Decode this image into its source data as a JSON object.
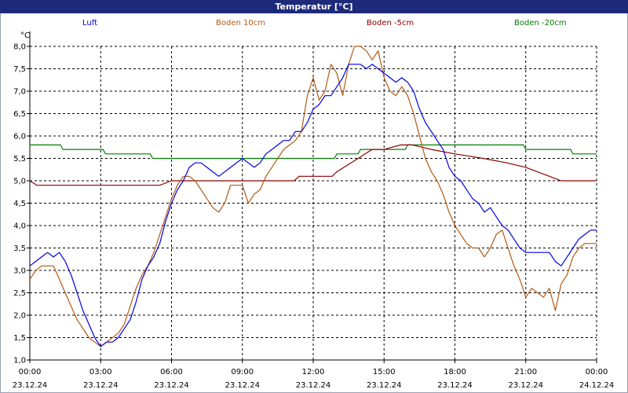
{
  "window": {
    "title": "Temperatur [°C]"
  },
  "colors": {
    "titlebar": "#1d2a7a",
    "grid": "#000000"
  },
  "chart_data": {
    "type": "line",
    "title": "Temperatur [°C]",
    "ylabel": "°C",
    "ylim": [
      1.0,
      8.0
    ],
    "yticks": [
      "1,0",
      "1,5",
      "2,0",
      "2,5",
      "3,0",
      "3,5",
      "4,0",
      "4,5",
      "5,0",
      "5,5",
      "6,0",
      "6,5",
      "7,0",
      "7,5",
      "8,0"
    ],
    "xlim": [
      0,
      24
    ],
    "xticks": [
      {
        "time": "00:00",
        "date": "23.12.24"
      },
      {
        "time": "03:00",
        "date": "23.12.24"
      },
      {
        "time": "06:00",
        "date": "23.12.24"
      },
      {
        "time": "09:00",
        "date": "23.12.24"
      },
      {
        "time": "12:00",
        "date": "23.12.24"
      },
      {
        "time": "15:00",
        "date": "23.12.24"
      },
      {
        "time": "18:00",
        "date": "23.12.24"
      },
      {
        "time": "21:00",
        "date": "23.12.24"
      },
      {
        "time": "00:00",
        "date": "24.12.24"
      }
    ],
    "grid": true,
    "legend_position": "top",
    "series": [
      {
        "name": "Luft",
        "color": "#0000e6",
        "points": [
          [
            0,
            3.1
          ],
          [
            0.25,
            3.2
          ],
          [
            0.5,
            3.3
          ],
          [
            0.75,
            3.4
          ],
          [
            1,
            3.3
          ],
          [
            1.25,
            3.4
          ],
          [
            1.5,
            3.2
          ],
          [
            1.75,
            2.9
          ],
          [
            2,
            2.5
          ],
          [
            2.25,
            2.1
          ],
          [
            2.5,
            1.8
          ],
          [
            2.75,
            1.5
          ],
          [
            3,
            1.3
          ],
          [
            3.25,
            1.4
          ],
          [
            3.5,
            1.4
          ],
          [
            3.75,
            1.5
          ],
          [
            4,
            1.7
          ],
          [
            4.25,
            1.9
          ],
          [
            4.5,
            2.3
          ],
          [
            4.75,
            2.8
          ],
          [
            5,
            3.1
          ],
          [
            5.25,
            3.3
          ],
          [
            5.5,
            3.6
          ],
          [
            5.75,
            4.1
          ],
          [
            6,
            4.5
          ],
          [
            6.25,
            4.8
          ],
          [
            6.5,
            5.0
          ],
          [
            6.75,
            5.3
          ],
          [
            7,
            5.4
          ],
          [
            7.25,
            5.4
          ],
          [
            7.5,
            5.3
          ],
          [
            7.75,
            5.2
          ],
          [
            8,
            5.1
          ],
          [
            8.5,
            5.3
          ],
          [
            9,
            5.5
          ],
          [
            9.25,
            5.4
          ],
          [
            9.5,
            5.3
          ],
          [
            9.75,
            5.4
          ],
          [
            10,
            5.6
          ],
          [
            10.25,
            5.7
          ],
          [
            10.5,
            5.8
          ],
          [
            10.75,
            5.9
          ],
          [
            11,
            5.9
          ],
          [
            11.25,
            6.1
          ],
          [
            11.5,
            6.1
          ],
          [
            11.75,
            6.3
          ],
          [
            12,
            6.6
          ],
          [
            12.25,
            6.7
          ],
          [
            12.5,
            6.9
          ],
          [
            12.75,
            6.9
          ],
          [
            13,
            7.1
          ],
          [
            13.25,
            7.3
          ],
          [
            13.5,
            7.6
          ],
          [
            13.75,
            7.6
          ],
          [
            14,
            7.6
          ],
          [
            14.25,
            7.5
          ],
          [
            14.5,
            7.6
          ],
          [
            14.75,
            7.5
          ],
          [
            15,
            7.4
          ],
          [
            15.25,
            7.3
          ],
          [
            15.5,
            7.2
          ],
          [
            15.75,
            7.3
          ],
          [
            16,
            7.2
          ],
          [
            16.25,
            7.0
          ],
          [
            16.5,
            6.6
          ],
          [
            16.75,
            6.3
          ],
          [
            17,
            6.1
          ],
          [
            17.25,
            5.9
          ],
          [
            17.5,
            5.7
          ],
          [
            17.75,
            5.3
          ],
          [
            18,
            5.1
          ],
          [
            18.25,
            5.0
          ],
          [
            18.5,
            4.8
          ],
          [
            18.75,
            4.6
          ],
          [
            19,
            4.5
          ],
          [
            19.25,
            4.3
          ],
          [
            19.5,
            4.4
          ],
          [
            19.75,
            4.2
          ],
          [
            20,
            4.0
          ],
          [
            20.25,
            3.9
          ],
          [
            20.5,
            3.7
          ],
          [
            20.75,
            3.5
          ],
          [
            21,
            3.4
          ],
          [
            21.25,
            3.4
          ],
          [
            21.5,
            3.4
          ],
          [
            21.75,
            3.4
          ],
          [
            22,
            3.4
          ],
          [
            22.25,
            3.2
          ],
          [
            22.5,
            3.1
          ],
          [
            22.75,
            3.3
          ],
          [
            23,
            3.5
          ],
          [
            23.25,
            3.7
          ],
          [
            23.5,
            3.8
          ],
          [
            23.75,
            3.9
          ],
          [
            24,
            3.9
          ]
        ]
      },
      {
        "name": "Boden 10cm",
        "color": "#b25a14",
        "points": [
          [
            0,
            2.8
          ],
          [
            0.25,
            3.0
          ],
          [
            0.5,
            3.1
          ],
          [
            1,
            3.1
          ],
          [
            1.25,
            2.8
          ],
          [
            1.5,
            2.5
          ],
          [
            1.75,
            2.2
          ],
          [
            2,
            1.9
          ],
          [
            2.25,
            1.7
          ],
          [
            2.5,
            1.5
          ],
          [
            2.75,
            1.4
          ],
          [
            3,
            1.3
          ],
          [
            3.25,
            1.4
          ],
          [
            3.5,
            1.5
          ],
          [
            3.75,
            1.6
          ],
          [
            4,
            1.8
          ],
          [
            4.25,
            2.2
          ],
          [
            4.5,
            2.6
          ],
          [
            4.75,
            2.9
          ],
          [
            5,
            3.1
          ],
          [
            5.25,
            3.4
          ],
          [
            5.5,
            3.8
          ],
          [
            5.75,
            4.2
          ],
          [
            6,
            4.6
          ],
          [
            6.25,
            4.9
          ],
          [
            6.5,
            5.1
          ],
          [
            6.75,
            5.1
          ],
          [
            7,
            5.0
          ],
          [
            7.25,
            4.8
          ],
          [
            7.5,
            4.6
          ],
          [
            7.75,
            4.4
          ],
          [
            8,
            4.3
          ],
          [
            8.25,
            4.5
          ],
          [
            8.5,
            4.9
          ],
          [
            8.75,
            4.9
          ],
          [
            9,
            4.9
          ],
          [
            9.25,
            4.5
          ],
          [
            9.5,
            4.7
          ],
          [
            9.75,
            4.8
          ],
          [
            10,
            5.1
          ],
          [
            10.25,
            5.3
          ],
          [
            10.5,
            5.5
          ],
          [
            10.75,
            5.7
          ],
          [
            11,
            5.8
          ],
          [
            11.25,
            5.9
          ],
          [
            11.5,
            6.1
          ],
          [
            11.75,
            6.9
          ],
          [
            12,
            7.3
          ],
          [
            12.25,
            6.8
          ],
          [
            12.5,
            7.0
          ],
          [
            12.75,
            7.6
          ],
          [
            13,
            7.4
          ],
          [
            13.25,
            6.9
          ],
          [
            13.5,
            7.6
          ],
          [
            13.75,
            8.0
          ],
          [
            14,
            8.0
          ],
          [
            14.25,
            7.9
          ],
          [
            14.5,
            7.7
          ],
          [
            14.75,
            7.9
          ],
          [
            15,
            7.3
          ],
          [
            15.25,
            7.0
          ],
          [
            15.5,
            6.9
          ],
          [
            15.75,
            7.1
          ],
          [
            16,
            6.9
          ],
          [
            16.25,
            6.5
          ],
          [
            16.5,
            6.0
          ],
          [
            16.75,
            5.5
          ],
          [
            17,
            5.2
          ],
          [
            17.25,
            5.0
          ],
          [
            17.5,
            4.7
          ],
          [
            17.75,
            4.3
          ],
          [
            18,
            4.0
          ],
          [
            18.25,
            3.8
          ],
          [
            18.5,
            3.6
          ],
          [
            18.75,
            3.5
          ],
          [
            19,
            3.5
          ],
          [
            19.25,
            3.3
          ],
          [
            19.5,
            3.5
          ],
          [
            19.75,
            3.8
          ],
          [
            20,
            3.9
          ],
          [
            20.25,
            3.5
          ],
          [
            20.5,
            3.1
          ],
          [
            20.75,
            2.8
          ],
          [
            21,
            2.4
          ],
          [
            21.25,
            2.6
          ],
          [
            21.5,
            2.5
          ],
          [
            21.75,
            2.4
          ],
          [
            22,
            2.6
          ],
          [
            22.25,
            2.1
          ],
          [
            22.5,
            2.7
          ],
          [
            22.75,
            2.9
          ],
          [
            23,
            3.3
          ],
          [
            23.25,
            3.5
          ],
          [
            23.5,
            3.6
          ],
          [
            24,
            3.6
          ]
        ]
      },
      {
        "name": "Boden -5cm",
        "color": "#8b0000",
        "points": [
          [
            0,
            5.0
          ],
          [
            0.3,
            4.9
          ],
          [
            5.5,
            4.9
          ],
          [
            6,
            5.0
          ],
          [
            11.2,
            5.0
          ],
          [
            11.4,
            5.1
          ],
          [
            12.8,
            5.1
          ],
          [
            13,
            5.2
          ],
          [
            13.3,
            5.3
          ],
          [
            13.6,
            5.4
          ],
          [
            13.9,
            5.5
          ],
          [
            14.2,
            5.6
          ],
          [
            14.5,
            5.7
          ],
          [
            15.0,
            5.7
          ],
          [
            15.7,
            5.8
          ],
          [
            16.2,
            5.8
          ],
          [
            17.0,
            5.7
          ],
          [
            18.0,
            5.6
          ],
          [
            19.2,
            5.5
          ],
          [
            20.2,
            5.4
          ],
          [
            21.0,
            5.3
          ],
          [
            22.0,
            5.1
          ],
          [
            22.5,
            5.0
          ],
          [
            24,
            5.0
          ]
        ]
      },
      {
        "name": "Boden -20cm",
        "color": "#008000",
        "points": [
          [
            0,
            5.8
          ],
          [
            1.3,
            5.8
          ],
          [
            1.4,
            5.7
          ],
          [
            3.1,
            5.7
          ],
          [
            3.2,
            5.6
          ],
          [
            5.1,
            5.6
          ],
          [
            5.2,
            5.5
          ],
          [
            12.9,
            5.5
          ],
          [
            13.0,
            5.6
          ],
          [
            13.9,
            5.6
          ],
          [
            14.0,
            5.7
          ],
          [
            15.9,
            5.7
          ],
          [
            16.0,
            5.8
          ],
          [
            20.9,
            5.8
          ],
          [
            21.0,
            5.7
          ],
          [
            22.9,
            5.7
          ],
          [
            23.0,
            5.6
          ],
          [
            24,
            5.6
          ]
        ]
      }
    ]
  }
}
